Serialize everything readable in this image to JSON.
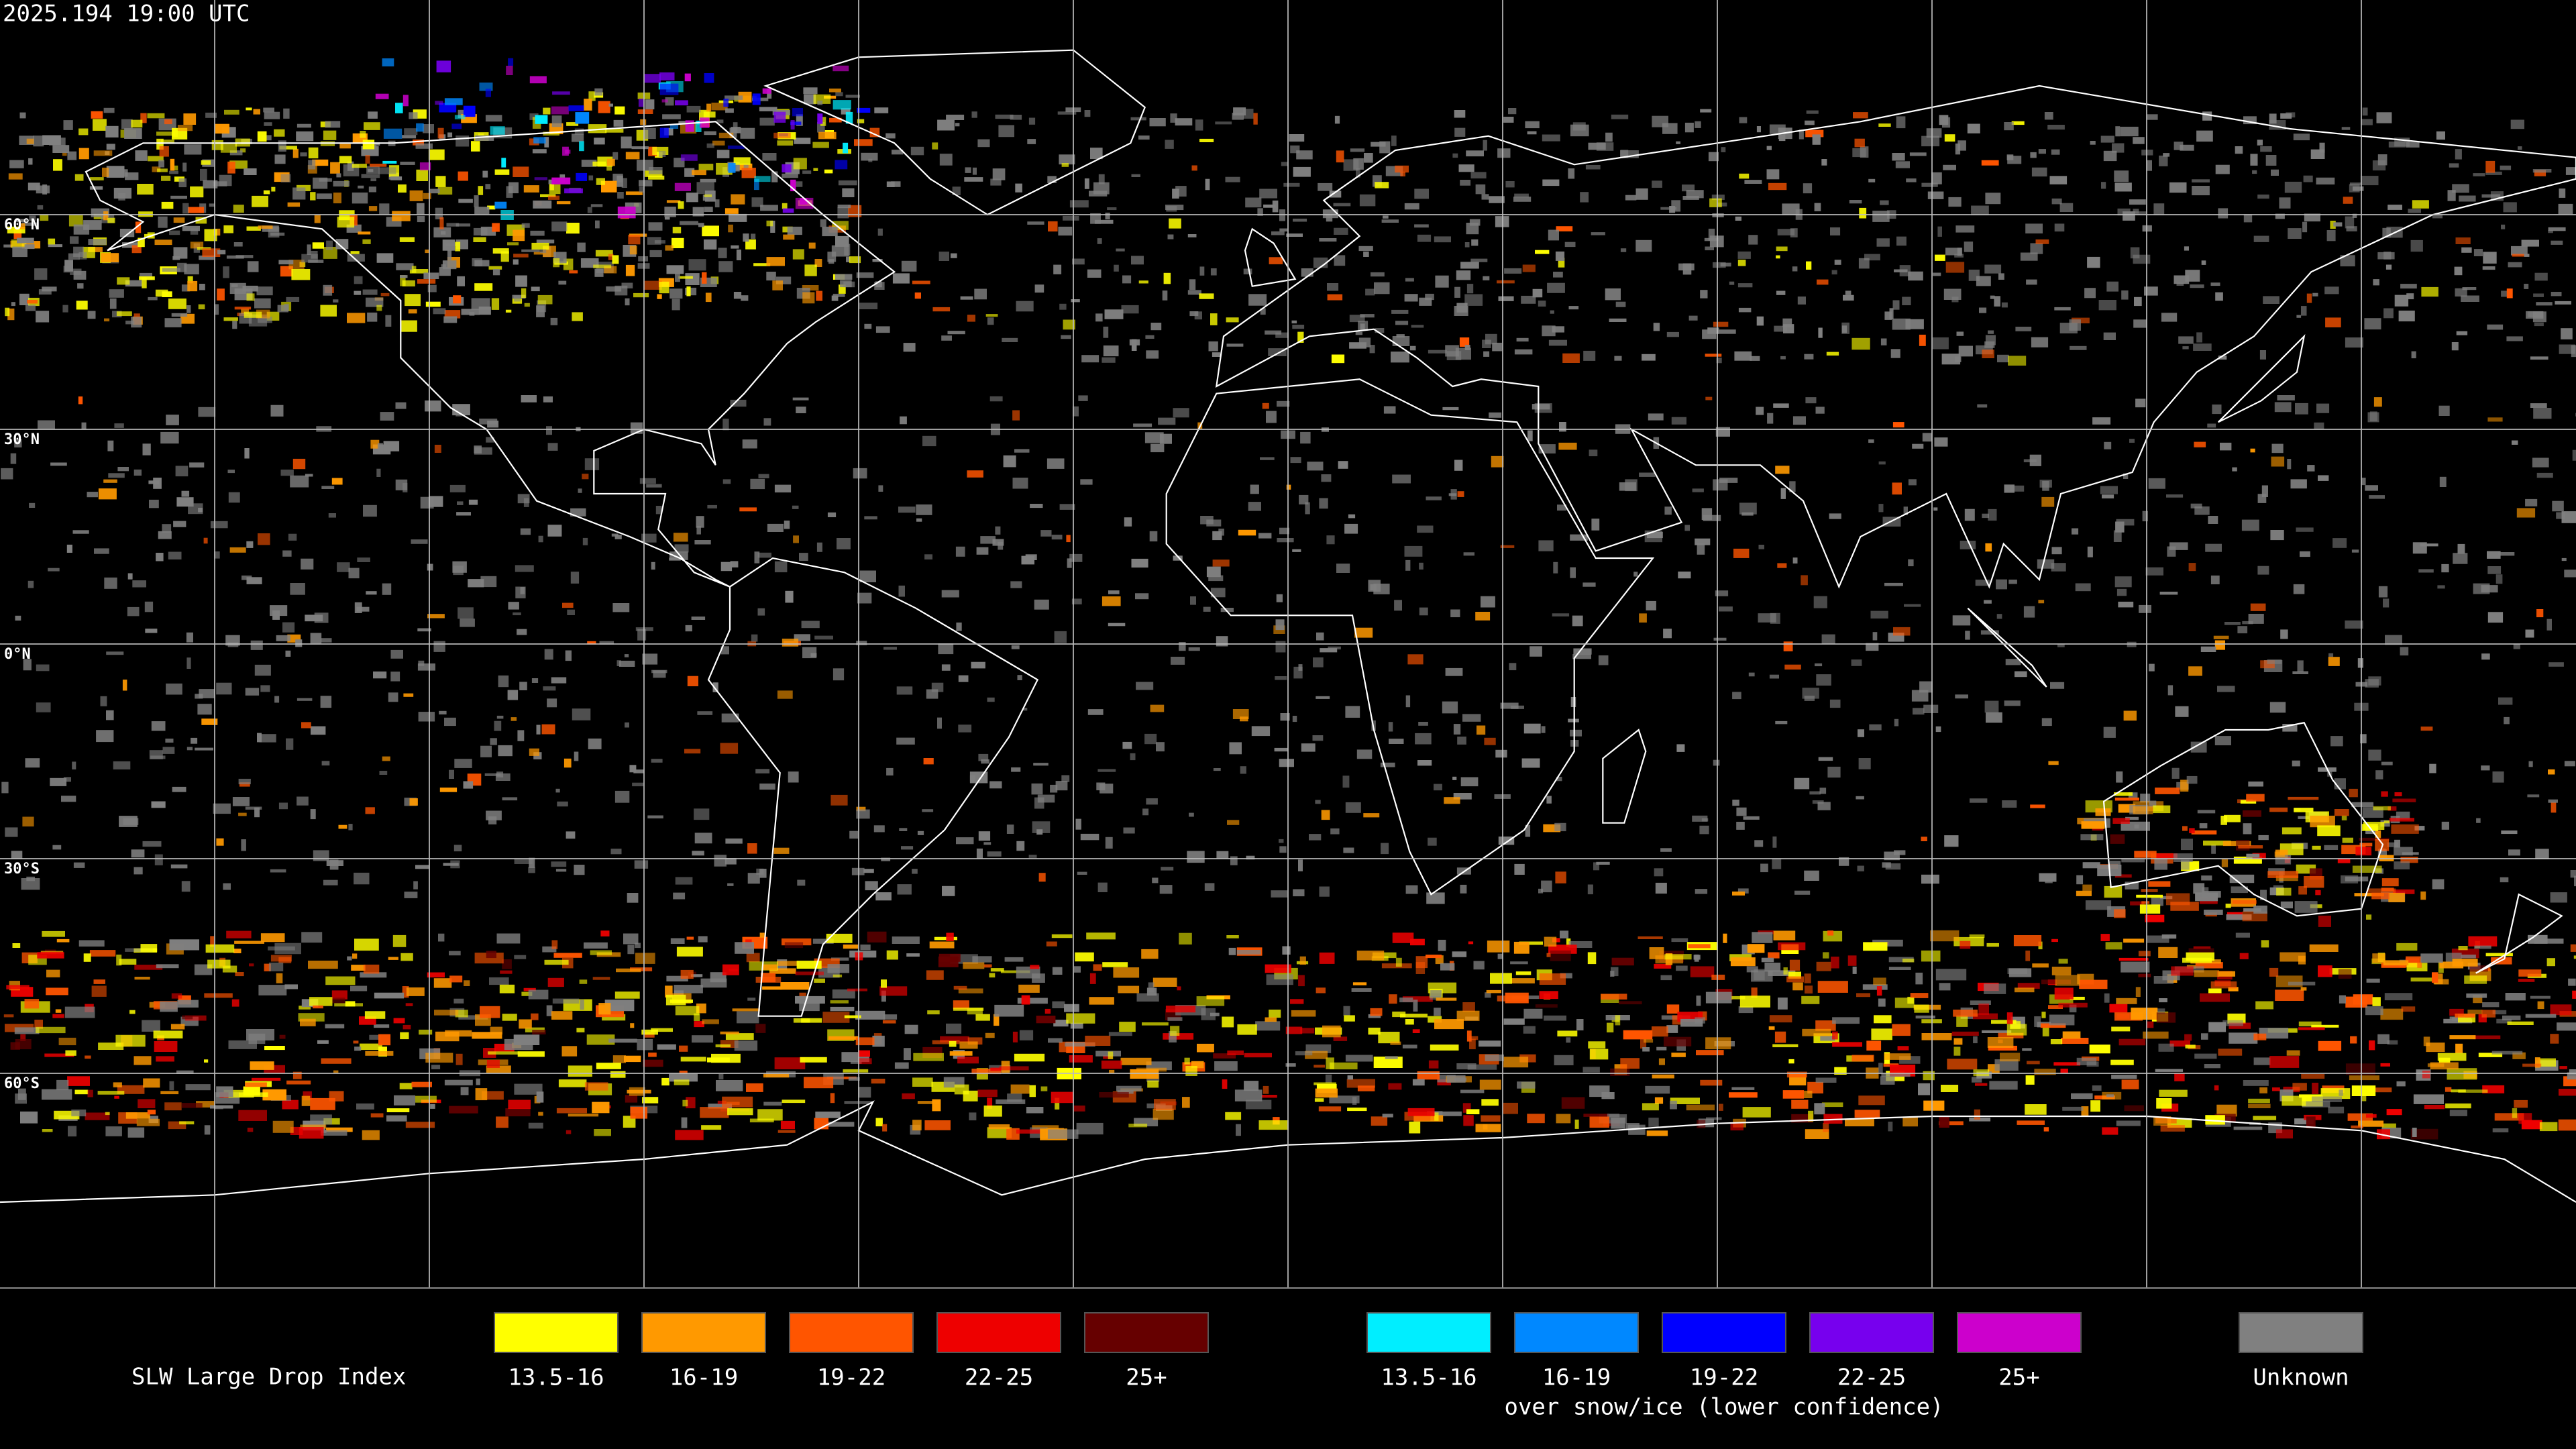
{
  "header": {
    "timestamp": "2025.194 19:00 UTC"
  },
  "map": {
    "lat_labels": [
      "60°N",
      "30°N",
      "0°N",
      "30°S",
      "60°S"
    ]
  },
  "legend": {
    "title": "SLW Large Drop Index",
    "groups": [
      {
        "items": [
          {
            "label": "13.5-16",
            "color": "#ffff00"
          },
          {
            "label": "16-19",
            "color": "#ff9900"
          },
          {
            "label": "19-22",
            "color": "#ff5500"
          },
          {
            "label": "22-25",
            "color": "#ee0000"
          },
          {
            "label": "25+",
            "color": "#660000"
          }
        ]
      },
      {
        "caption": "over snow/ice (lower confidence)",
        "items": [
          {
            "label": "13.5-16",
            "color": "#00eeff"
          },
          {
            "label": "16-19",
            "color": "#0088ff"
          },
          {
            "label": "19-22",
            "color": "#0000ff"
          },
          {
            "label": "22-25",
            "color": "#7700ee"
          },
          {
            "label": "25+",
            "color": "#cc00cc"
          }
        ]
      },
      {
        "items": [
          {
            "label": "Unknown",
            "color": "#808080"
          }
        ]
      }
    ]
  }
}
